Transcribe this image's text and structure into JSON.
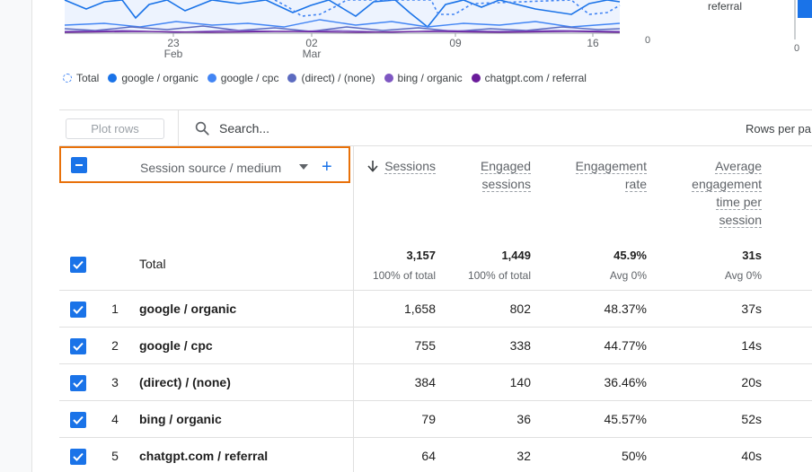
{
  "chart": {
    "x_ticks": [
      {
        "day": "23",
        "month": "Feb"
      },
      {
        "day": "02",
        "month": "Mar"
      },
      {
        "day": "09",
        "month": ""
      },
      {
        "day": "16",
        "month": ""
      }
    ],
    "zero_left": "0",
    "zero_right": "0",
    "side_label": "referral",
    "legend": [
      {
        "name": "Total",
        "color": "#4285f4",
        "style": "dashed"
      },
      {
        "name": "google / organic",
        "color": "#1a73e8"
      },
      {
        "name": "google / cpc",
        "color": "#4285f4"
      },
      {
        "name": "(direct) / (none)",
        "color": "#5c6bc0"
      },
      {
        "name": "bing / organic",
        "color": "#7e57c2"
      },
      {
        "name": "chatgpt.com / referral",
        "color": "#6a1b9a"
      }
    ]
  },
  "toolbar": {
    "plot_rows_label": "Plot rows",
    "search_placeholder": "Search...",
    "rows_per_page_label": "Rows per pa"
  },
  "table": {
    "dimension_header": "Session source / medium",
    "columns": [
      {
        "lines": [
          "Sessions"
        ]
      },
      {
        "lines": [
          "Engaged",
          "sessions"
        ]
      },
      {
        "lines": [
          "Engagement",
          "rate"
        ]
      },
      {
        "lines": [
          "Average",
          "engagement",
          "time per",
          "session"
        ]
      }
    ],
    "total": {
      "label": "Total",
      "values": [
        "3,157",
        "1,449",
        "45.9%",
        "31s"
      ],
      "subs": [
        "100% of total",
        "100% of total",
        "Avg 0%",
        "Avg 0%"
      ]
    },
    "rows": [
      {
        "index": "1",
        "name": "google / organic",
        "values": [
          "1,658",
          "802",
          "48.37%",
          "37s"
        ]
      },
      {
        "index": "2",
        "name": "google / cpc",
        "values": [
          "755",
          "338",
          "44.77%",
          "14s"
        ]
      },
      {
        "index": "3",
        "name": "(direct) / (none)",
        "values": [
          "384",
          "140",
          "36.46%",
          "20s"
        ]
      },
      {
        "index": "4",
        "name": "bing / organic",
        "values": [
          "79",
          "36",
          "45.57%",
          "52s"
        ]
      },
      {
        "index": "5",
        "name": "chatgpt.com / referral",
        "values": [
          "64",
          "32",
          "50%",
          "40s"
        ]
      }
    ]
  }
}
